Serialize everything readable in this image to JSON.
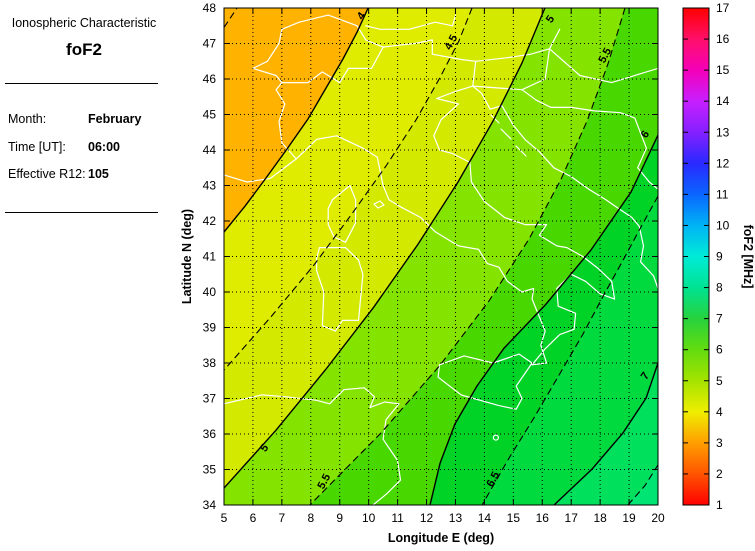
{
  "panel": {
    "title": "Ionospheric Characteristic",
    "subtitle": "foF2",
    "fields": [
      {
        "label": "Month:",
        "value": "February"
      },
      {
        "label": "Time [UT]:",
        "value": "06:00"
      },
      {
        "label": "Effective R12:",
        "value": "105"
      }
    ]
  },
  "chart_data": {
    "type": "heatmap",
    "subtype": "filled-contour-map",
    "title": "foF2",
    "xlabel": "Longitude E (deg)",
    "ylabel": "Latitude N (deg)",
    "xlim": [
      5,
      20
    ],
    "ylim": [
      34,
      48
    ],
    "x_ticks": [
      5,
      6,
      7,
      8,
      9,
      10,
      11,
      12,
      13,
      14,
      15,
      16,
      17,
      18,
      19,
      20
    ],
    "y_ticks": [
      34,
      35,
      36,
      37,
      38,
      39,
      40,
      41,
      42,
      43,
      44,
      45,
      46,
      47,
      48
    ],
    "grid": "dotted",
    "contour_step": 0.5,
    "base_fill": "#ffb300",
    "basemap_note": "white coastlines and borders of Italy and central Mediterranean",
    "contours": [
      {
        "level": 3.5,
        "style": "dashed",
        "label": "",
        "fill": null,
        "close": null,
        "points": [
          [
            5,
            47.45
          ],
          [
            5.45,
            48
          ]
        ],
        "labels": []
      },
      {
        "level": 4,
        "style": "solid",
        "label": "4",
        "fill": "#dfec00",
        "close": [
          [
            5,
            34
          ],
          [
            20,
            34
          ],
          [
            20,
            48
          ]
        ],
        "points": [
          [
            9.98,
            48
          ],
          [
            9.6,
            47.32
          ],
          [
            9.11,
            46.56
          ],
          [
            8.53,
            45.75
          ],
          [
            7.9,
            44.87
          ],
          [
            7.18,
            44.03
          ],
          [
            6.45,
            43.21
          ],
          [
            5.73,
            42.42
          ],
          [
            5,
            41.69
          ]
        ],
        "labels": [
          {
            "at": [
              9.84,
              47.72
            ],
            "rot": -55
          }
        ]
      },
      {
        "level": 4.5,
        "style": "dashed",
        "label": "4.5",
        "fill": "#d3ea00",
        "close": [
          [
            5,
            34
          ],
          [
            20,
            34
          ],
          [
            20,
            48
          ]
        ],
        "points": [
          [
            13.57,
            48
          ],
          [
            13.12,
            47.07
          ],
          [
            12.46,
            46.03
          ],
          [
            11.64,
            44.85
          ],
          [
            10.6,
            43.55
          ],
          [
            9.42,
            42.2
          ],
          [
            8.11,
            40.76
          ],
          [
            6.62,
            39.3
          ],
          [
            5,
            37.8
          ]
        ],
        "labels": [
          {
            "at": [
              12.95,
              46.99
            ],
            "rot": -62
          }
        ]
      },
      {
        "level": 5,
        "style": "solid",
        "label": "5",
        "fill": "#84e400",
        "close": [
          [
            5,
            34
          ],
          [
            20,
            34
          ],
          [
            20,
            48
          ]
        ],
        "points": [
          [
            16.09,
            48
          ],
          [
            15.3,
            46.45
          ],
          [
            14.3,
            44.82
          ],
          [
            13.09,
            43.1
          ],
          [
            11.71,
            41.35
          ],
          [
            10.18,
            39.58
          ],
          [
            8.53,
            37.83
          ],
          [
            6.8,
            36.11
          ],
          [
            5,
            34.48
          ]
        ],
        "labels": [
          {
            "at": [
              16.37,
              47.63
            ],
            "rot": -55
          },
          {
            "at": [
              6.49,
              35.55
            ],
            "rot": -55
          }
        ]
      },
      {
        "level": 5.5,
        "style": "dashed",
        "label": "5.5",
        "fill": "#48d800",
        "close": [
          [
            20,
            34
          ],
          [
            20,
            48
          ]
        ],
        "points": [
          [
            18.86,
            48
          ],
          [
            18.27,
            46.42
          ],
          [
            17.55,
            44.82
          ],
          [
            16.65,
            43.18
          ],
          [
            15.54,
            41.49
          ],
          [
            14.16,
            39.75
          ],
          [
            12.47,
            37.94
          ],
          [
            10.43,
            36.03
          ],
          [
            7.97,
            34
          ]
        ],
        "labels": [
          {
            "at": [
              18.27,
              46.62
            ],
            "rot": -62
          },
          {
            "at": [
              8.56,
              34.62
            ],
            "rot": -62
          }
        ]
      },
      {
        "level": 6,
        "style": "solid",
        "label": "6",
        "fill": "#00d226",
        "close": [
          [
            20,
            34
          ]
        ],
        "points": [
          [
            20,
            44.42
          ],
          [
            19.07,
            42.82
          ],
          [
            17.68,
            41.18
          ],
          [
            16.13,
            39.66
          ],
          [
            14.68,
            38.42
          ],
          [
            13.74,
            37.35
          ],
          [
            12.98,
            36.28
          ],
          [
            12.47,
            35.18
          ],
          [
            12.12,
            34
          ]
        ],
        "labels": [
          {
            "at": [
              19.65,
              44.39
            ],
            "rot": -55
          }
        ]
      },
      {
        "level": 6.5,
        "style": "dashed",
        "label": "6.5",
        "fill": "#00da3e",
        "close": [
          [
            20,
            34
          ]
        ],
        "points": [
          [
            20,
            42.7
          ],
          [
            19.45,
            41.89
          ],
          [
            18.83,
            40.95
          ],
          [
            18.13,
            39.92
          ],
          [
            17.41,
            38.82
          ],
          [
            16.58,
            37.66
          ],
          [
            15.71,
            36.45
          ],
          [
            14.85,
            35.32
          ],
          [
            13.92,
            34
          ]
        ],
        "labels": [
          {
            "at": [
              14.4,
              34.68
            ],
            "rot": -62
          }
        ]
      },
      {
        "level": 7,
        "style": "solid",
        "label": "7",
        "fill": "#00e05c",
        "close": [
          [
            20,
            34
          ]
        ],
        "points": [
          [
            20,
            38
          ],
          [
            19.59,
            37.01
          ],
          [
            18.79,
            36.03
          ],
          [
            17.72,
            35.01
          ],
          [
            16.41,
            34
          ]
        ],
        "labels": [
          {
            "at": [
              19.65,
              37.58
            ],
            "rot": -55
          }
        ]
      },
      {
        "level": 7.5,
        "style": "dashed",
        "label": "",
        "fill": "#00e474",
        "close": [
          [
            20,
            34
          ]
        ],
        "points": [
          [
            18.96,
            34
          ],
          [
            19.55,
            34.55
          ],
          [
            20,
            35.13
          ]
        ],
        "labels": []
      }
    ],
    "colorbar": {
      "label": "foF2 [MHz]",
      "min": 1,
      "max": 17,
      "ticks": [
        1,
        2,
        3,
        4,
        5,
        6,
        7,
        8,
        9,
        10,
        11,
        12,
        13,
        14,
        15,
        16,
        17
      ],
      "stops": [
        {
          "value": 17,
          "color": "#ff0000"
        },
        {
          "value": 16,
          "color": "#ff0f69"
        },
        {
          "value": 15,
          "color": "#f500b9"
        },
        {
          "value": 14,
          "color": "#c71fff"
        },
        {
          "value": 13,
          "color": "#8520ff"
        },
        {
          "value": 12,
          "color": "#2929ff"
        },
        {
          "value": 11,
          "color": "#0a66ff"
        },
        {
          "value": 10,
          "color": "#00b3f5"
        },
        {
          "value": 9,
          "color": "#00ebd7"
        },
        {
          "value": 8,
          "color": "#00e392"
        },
        {
          "value": 7,
          "color": "#27d23d"
        },
        {
          "value": 6,
          "color": "#63dc0f"
        },
        {
          "value": 5,
          "color": "#a5e300"
        },
        {
          "value": 4,
          "color": "#eeee00"
        },
        {
          "value": 3,
          "color": "#ff9e00"
        },
        {
          "value": 2,
          "color": "#ff5400"
        },
        {
          "value": 1,
          "color": "#ff0000"
        }
      ]
    }
  }
}
